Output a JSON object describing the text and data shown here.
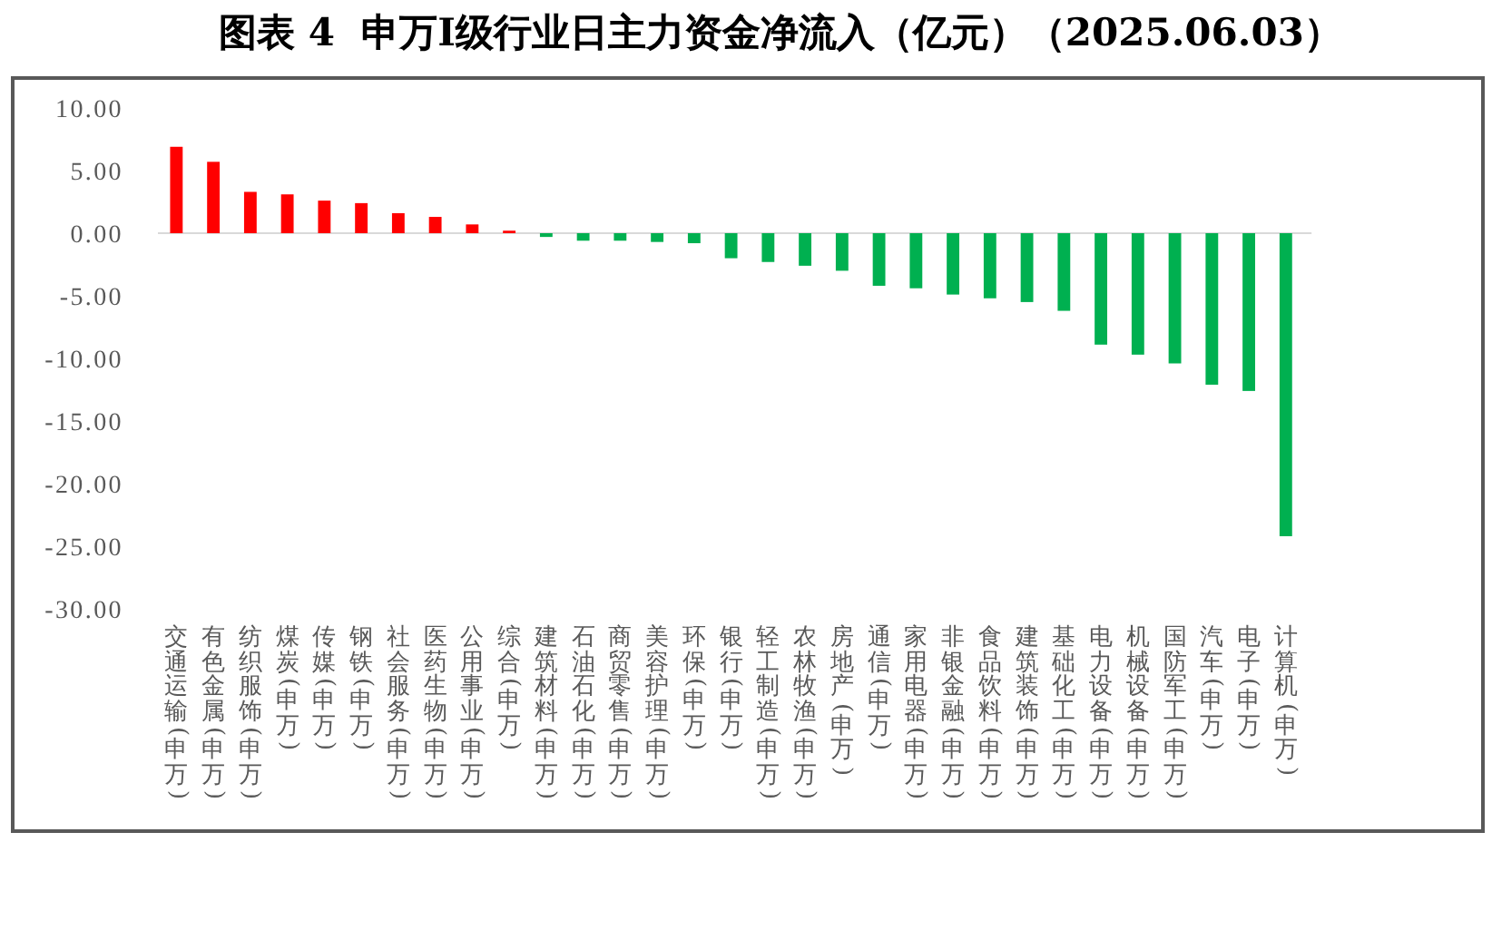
{
  "chart_data": {
    "type": "bar",
    "title": "图表 4  申万Ⅰ级行业日主力资金净流入（亿元）（2025.06.03）",
    "categories": [
      "交通运输(申万)",
      "有色金属(申万)",
      "纺织服饰(申万)",
      "煤炭(申万)",
      "传媒(申万)",
      "钢铁(申万)",
      "社会服务(申万)",
      "医药生物(申万)",
      "公用事业(申万)",
      "综合(申万)",
      "建筑材料(申万)",
      "石油石化(申万)",
      "商贸零售(申万)",
      "美容护理(申万)",
      "环保(申万)",
      "银行(申万)",
      "轻工制造(申万)",
      "农林牧渔(申万)",
      "房地产(申万)",
      "通信(申万)",
      "家用电器(申万)",
      "非银金融(申万)",
      "食品饮料(申万)",
      "建筑装饰(申万)",
      "基础化工(申万)",
      "电力设备(申万)",
      "机械设备(申万)",
      "国防军工(申万)",
      "汽车(申万)",
      "电子(申万)",
      "计算机(申万)"
    ],
    "values": [
      6.9,
      5.7,
      3.3,
      3.1,
      2.6,
      2.4,
      1.6,
      1.3,
      0.7,
      0.2,
      -0.3,
      -0.6,
      -0.6,
      -0.7,
      -0.8,
      -2.0,
      -2.3,
      -2.6,
      -3.0,
      -4.2,
      -4.4,
      -4.9,
      -5.2,
      -5.5,
      -6.2,
      -8.9,
      -9.7,
      -10.4,
      -12.1,
      -12.6,
      -24.2
    ],
    "colors": [
      "#ff0000",
      "#ff0000",
      "#ff0000",
      "#ff0000",
      "#ff0000",
      "#ff0000",
      "#ff0000",
      "#ff0000",
      "#ff0000",
      "#ff0000",
      "#00b050",
      "#00b050",
      "#00b050",
      "#00b050",
      "#00b050",
      "#00b050",
      "#00b050",
      "#00b050",
      "#00b050",
      "#00b050",
      "#00b050",
      "#00b050",
      "#00b050",
      "#00b050",
      "#00b050",
      "#00b050",
      "#00b050",
      "#00b050",
      "#00b050",
      "#00b050",
      "#00b050"
    ],
    "ylim": [
      -30,
      10
    ],
    "yticks": [
      {
        "value": 10,
        "label": "10.00"
      },
      {
        "value": 5,
        "label": "5.00"
      },
      {
        "value": 0,
        "label": "0.00"
      },
      {
        "value": -5,
        "label": "-5.00"
      },
      {
        "value": -10,
        "label": "-10.00"
      },
      {
        "value": -15,
        "label": "-15.00"
      },
      {
        "value": -20,
        "label": "-20.00"
      },
      {
        "value": -25,
        "label": "-25.00"
      },
      {
        "value": -30,
        "label": "-30.00"
      }
    ]
  }
}
